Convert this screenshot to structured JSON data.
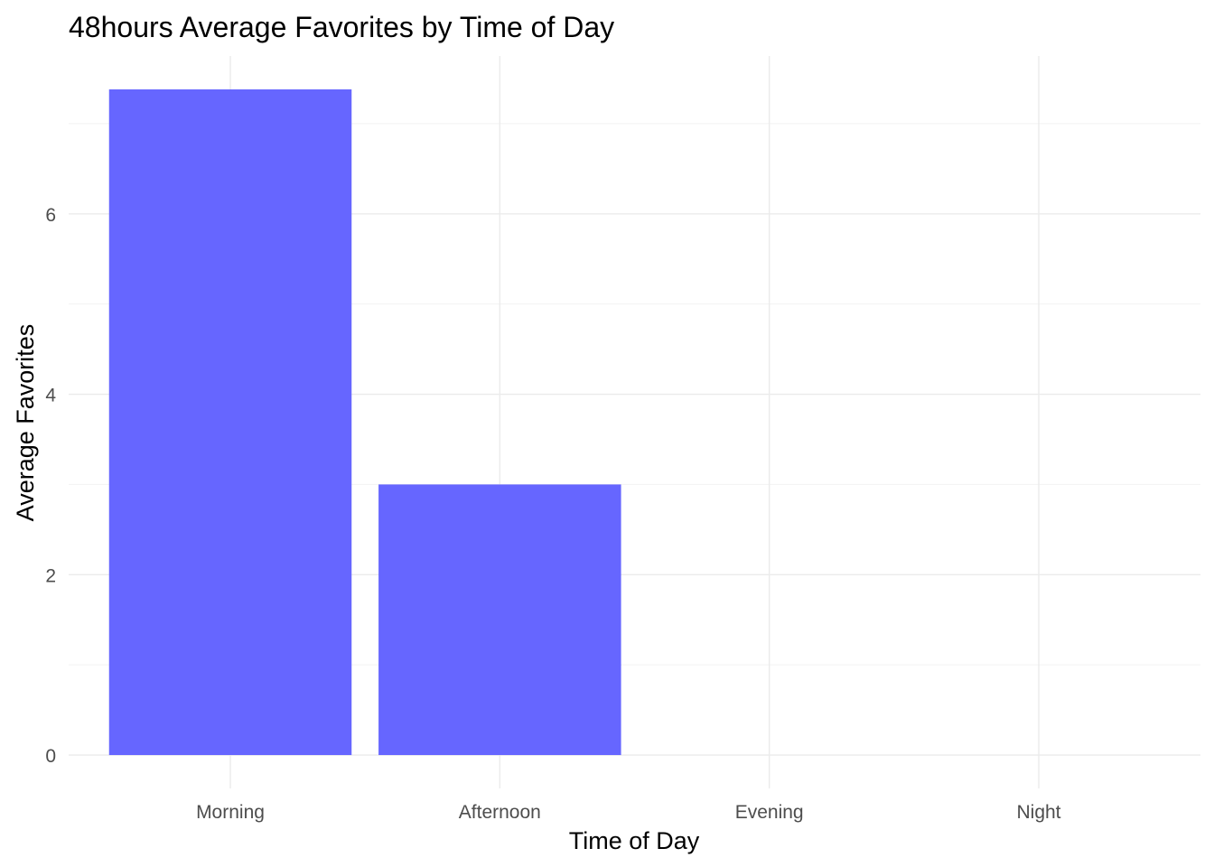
{
  "chart_data": {
    "type": "bar",
    "title": "48hours Average Favorites by Time of Day",
    "xlabel": "Time of Day",
    "ylabel": "Average Favorites",
    "categories": [
      "Morning",
      "Afternoon",
      "Evening",
      "Night"
    ],
    "values": [
      7.38,
      3.0,
      0,
      0
    ],
    "ylim": [
      -0.37,
      7.75
    ],
    "yticks": [
      0,
      2,
      4,
      6
    ],
    "yticks_minor": [
      1,
      3,
      5,
      7
    ],
    "grid": true,
    "legend": "none",
    "bar_color": "#6666FF"
  }
}
